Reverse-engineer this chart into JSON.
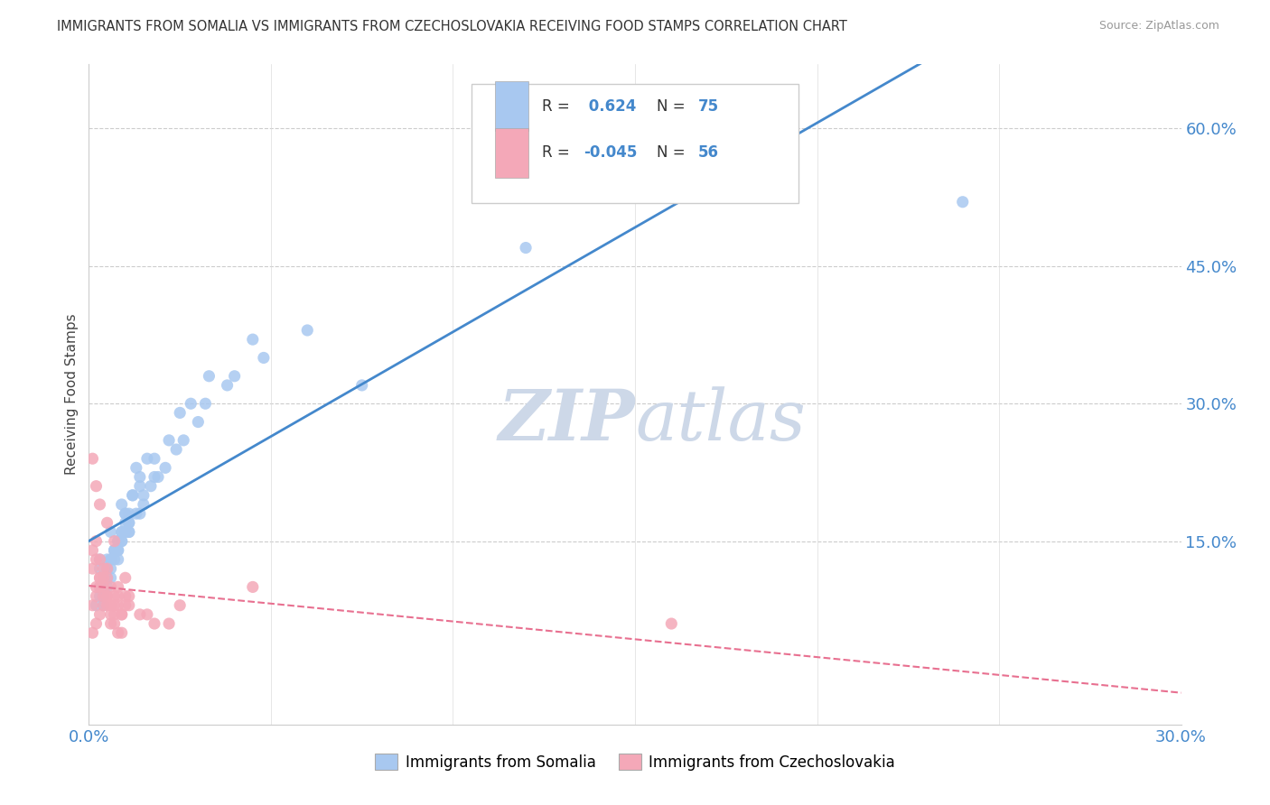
{
  "title": "IMMIGRANTS FROM SOMALIA VS IMMIGRANTS FROM CZECHOSLOVAKIA RECEIVING FOOD STAMPS CORRELATION CHART",
  "source": "Source: ZipAtlas.com",
  "ylabel": "Receiving Food Stamps",
  "yticks": [
    "15.0%",
    "30.0%",
    "45.0%",
    "60.0%"
  ],
  "ytick_vals": [
    0.15,
    0.3,
    0.45,
    0.6
  ],
  "xmin": 0.0,
  "xmax": 0.3,
  "ymin": -0.05,
  "ymax": 0.67,
  "somalia_R": 0.624,
  "somalia_N": 75,
  "czech_R": -0.045,
  "czech_N": 56,
  "somalia_color": "#a8c8f0",
  "czech_color": "#f4a8b8",
  "somalia_line_color": "#4488cc",
  "czech_line_color": "#e87090",
  "legend_label_somalia": "Immigrants from Somalia",
  "legend_label_czech": "Immigrants from Czechoslovakia",
  "background_color": "#ffffff",
  "watermark_color": "#cdd8e8",
  "somalia_x": [
    0.002,
    0.003,
    0.004,
    0.005,
    0.006,
    0.007,
    0.008,
    0.009,
    0.01,
    0.011,
    0.003,
    0.004,
    0.005,
    0.006,
    0.007,
    0.008,
    0.009,
    0.01,
    0.011,
    0.012,
    0.004,
    0.005,
    0.006,
    0.007,
    0.008,
    0.009,
    0.01,
    0.012,
    0.014,
    0.016,
    0.003,
    0.005,
    0.007,
    0.009,
    0.011,
    0.013,
    0.015,
    0.018,
    0.022,
    0.028,
    0.004,
    0.006,
    0.008,
    0.011,
    0.014,
    0.017,
    0.021,
    0.026,
    0.032,
    0.04,
    0.005,
    0.008,
    0.011,
    0.015,
    0.019,
    0.024,
    0.03,
    0.038,
    0.048,
    0.06,
    0.003,
    0.006,
    0.01,
    0.014,
    0.018,
    0.025,
    0.033,
    0.045,
    0.12,
    0.18,
    0.004,
    0.009,
    0.013,
    0.075,
    0.24
  ],
  "somalia_y": [
    0.08,
    0.09,
    0.1,
    0.11,
    0.12,
    0.13,
    0.14,
    0.15,
    0.16,
    0.17,
    0.1,
    0.11,
    0.12,
    0.13,
    0.14,
    0.15,
    0.16,
    0.17,
    0.18,
    0.2,
    0.11,
    0.12,
    0.13,
    0.14,
    0.15,
    0.16,
    0.18,
    0.2,
    0.22,
    0.24,
    0.12,
    0.13,
    0.14,
    0.15,
    0.16,
    0.18,
    0.2,
    0.22,
    0.26,
    0.3,
    0.09,
    0.11,
    0.13,
    0.16,
    0.18,
    0.21,
    0.23,
    0.26,
    0.3,
    0.33,
    0.1,
    0.14,
    0.17,
    0.19,
    0.22,
    0.25,
    0.28,
    0.32,
    0.35,
    0.38,
    0.13,
    0.16,
    0.18,
    0.21,
    0.24,
    0.29,
    0.33,
    0.37,
    0.47,
    0.56,
    0.08,
    0.19,
    0.23,
    0.32,
    0.52
  ],
  "czech_x": [
    0.001,
    0.002,
    0.003,
    0.004,
    0.005,
    0.006,
    0.007,
    0.008,
    0.009,
    0.01,
    0.001,
    0.002,
    0.003,
    0.004,
    0.005,
    0.006,
    0.007,
    0.008,
    0.009,
    0.01,
    0.002,
    0.003,
    0.004,
    0.005,
    0.006,
    0.007,
    0.008,
    0.011,
    0.016,
    0.022,
    0.001,
    0.002,
    0.003,
    0.004,
    0.005,
    0.007,
    0.009,
    0.011,
    0.025,
    0.045,
    0.001,
    0.002,
    0.003,
    0.004,
    0.005,
    0.006,
    0.008,
    0.01,
    0.014,
    0.018,
    0.001,
    0.002,
    0.003,
    0.005,
    0.007,
    0.16
  ],
  "czech_y": [
    0.08,
    0.09,
    0.1,
    0.11,
    0.12,
    0.08,
    0.09,
    0.1,
    0.07,
    0.11,
    0.05,
    0.06,
    0.07,
    0.08,
    0.09,
    0.06,
    0.07,
    0.08,
    0.05,
    0.09,
    0.1,
    0.11,
    0.09,
    0.08,
    0.07,
    0.06,
    0.05,
    0.08,
    0.07,
    0.06,
    0.12,
    0.13,
    0.11,
    0.1,
    0.09,
    0.08,
    0.07,
    0.09,
    0.08,
    0.1,
    0.14,
    0.15,
    0.13,
    0.12,
    0.11,
    0.1,
    0.09,
    0.08,
    0.07,
    0.06,
    0.24,
    0.21,
    0.19,
    0.17,
    0.15,
    0.06
  ]
}
